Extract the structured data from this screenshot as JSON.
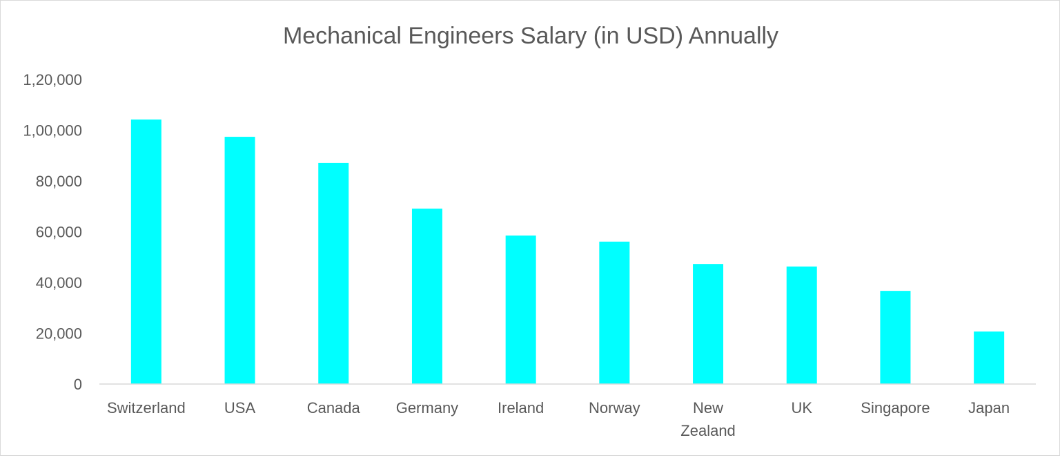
{
  "chart_data": {
    "type": "bar",
    "title": "Mechanical Engineers Salary (in USD) Annually",
    "xlabel": "",
    "ylabel": "",
    "categories": [
      "Switzerland",
      "USA",
      "Canada",
      "Germany",
      "Ireland",
      "Norway",
      "New Zealand",
      "UK",
      "Singapore",
      "Japan"
    ],
    "values": [
      104200,
      97400,
      87100,
      69100,
      58500,
      56100,
      47300,
      46300,
      36700,
      20700
    ],
    "ylim": [
      0,
      120000
    ],
    "yticks": [
      0,
      20000,
      40000,
      60000,
      80000,
      100000,
      120000
    ],
    "ytick_labels": [
      "0",
      "20,000",
      "40,000",
      "60,000",
      "80,000",
      "1,00,000",
      "1,20,000"
    ],
    "grid": false,
    "legend": "none",
    "bar_color": "#00FFFF",
    "axis_color": "#d9d9d9"
  }
}
